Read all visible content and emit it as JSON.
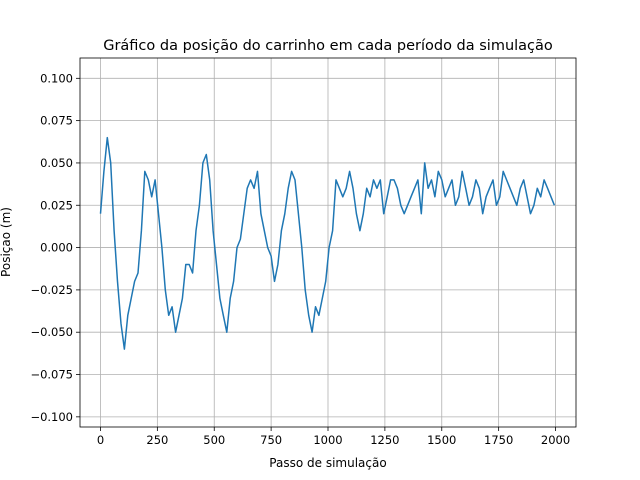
{
  "chart_data": {
    "type": "line",
    "title": "Gráfico da posição do carrinho em cada período da simulação",
    "xlabel": "Passo de simulação",
    "ylabel": "Posiçao (m)",
    "xlim": [
      -90,
      2090
    ],
    "ylim": [
      -0.106,
      0.112
    ],
    "x_ticks": [
      0,
      250,
      500,
      750,
      1000,
      1250,
      1500,
      1750,
      2000
    ],
    "x_tick_labels": [
      "0",
      "250",
      "500",
      "750",
      "1000",
      "1250",
      "1500",
      "1750",
      "2000"
    ],
    "y_ticks": [
      -0.1,
      -0.075,
      -0.05,
      -0.025,
      0.0,
      0.025,
      0.05,
      0.075,
      0.1
    ],
    "y_tick_labels": [
      "−0.100",
      "−0.075",
      "−0.050",
      "−0.025",
      "0.000",
      "0.025",
      "0.050",
      "0.075",
      "0.100"
    ],
    "grid": true,
    "color": "#1f77b4",
    "series": [
      {
        "x": [
          0,
          15,
          30,
          45,
          60,
          75,
          90,
          105,
          120,
          135,
          150,
          165,
          180,
          195,
          210,
          225,
          240,
          255,
          270,
          285,
          300,
          315,
          330,
          345,
          360,
          375,
          390,
          405,
          420,
          435,
          450,
          465,
          480,
          495,
          510,
          525,
          540,
          555,
          570,
          585,
          600,
          615,
          630,
          645,
          660,
          675,
          690,
          705,
          720,
          735,
          750,
          765,
          780,
          795,
          810,
          825,
          840,
          855,
          870,
          885,
          900,
          915,
          930,
          945,
          960,
          975,
          990,
          1005,
          1020,
          1035,
          1050,
          1065,
          1080,
          1095,
          1110,
          1125,
          1140,
          1155,
          1170,
          1185,
          1200,
          1215,
          1230,
          1245,
          1260,
          1275,
          1290,
          1305,
          1320,
          1335,
          1350,
          1365,
          1380,
          1395,
          1410,
          1425,
          1440,
          1455,
          1470,
          1485,
          1500,
          1515,
          1530,
          1545,
          1560,
          1575,
          1590,
          1605,
          1620,
          1635,
          1650,
          1665,
          1680,
          1695,
          1710,
          1725,
          1740,
          1755,
          1770,
          1785,
          1800,
          1815,
          1830,
          1845,
          1860,
          1875,
          1890,
          1905,
          1920,
          1935,
          1950,
          1965,
          1980,
          1995
        ],
        "values": [
          0.02,
          0.045,
          0.065,
          0.05,
          0.01,
          -0.02,
          -0.045,
          -0.06,
          -0.04,
          -0.03,
          -0.02,
          -0.015,
          0.01,
          0.045,
          0.04,
          0.03,
          0.04,
          0.02,
          0.0,
          -0.025,
          -0.04,
          -0.035,
          -0.05,
          -0.04,
          -0.03,
          -0.01,
          -0.01,
          -0.015,
          0.01,
          0.025,
          0.05,
          0.055,
          0.04,
          0.01,
          -0.01,
          -0.03,
          -0.04,
          -0.05,
          -0.03,
          -0.02,
          0.0,
          0.005,
          0.02,
          0.035,
          0.04,
          0.035,
          0.045,
          0.02,
          0.01,
          0.0,
          -0.005,
          -0.02,
          -0.01,
          0.01,
          0.02,
          0.035,
          0.045,
          0.04,
          0.02,
          0.0,
          -0.025,
          -0.04,
          -0.05,
          -0.035,
          -0.04,
          -0.03,
          -0.02,
          0.0,
          0.01,
          0.04,
          0.035,
          0.03,
          0.035,
          0.045,
          0.035,
          0.02,
          0.01,
          0.02,
          0.035,
          0.03,
          0.04,
          0.035,
          0.04,
          0.02,
          0.03,
          0.04,
          0.04,
          0.035,
          0.025,
          0.02,
          0.025,
          0.03,
          0.035,
          0.04,
          0.02,
          0.05,
          0.035,
          0.04,
          0.03,
          0.045,
          0.04,
          0.03,
          0.035,
          0.04,
          0.025,
          0.03,
          0.045,
          0.035,
          0.025,
          0.03,
          0.04,
          0.035,
          0.02,
          0.03,
          0.035,
          0.04,
          0.025,
          0.03,
          0.045,
          0.04,
          0.035,
          0.03,
          0.025,
          0.035,
          0.04,
          0.03,
          0.02,
          0.025,
          0.035,
          0.03,
          0.04,
          0.035,
          0.03,
          0.025
        ]
      }
    ]
  }
}
